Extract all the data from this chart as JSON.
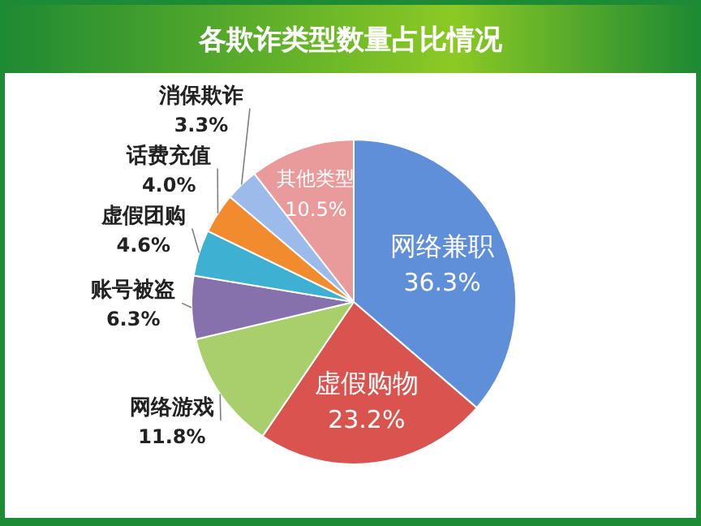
{
  "chart_data": {
    "type": "pie",
    "title": "各欺诈类型数量占比情况",
    "categories": [
      "网络兼职",
      "虚假购物",
      "网络游戏",
      "账号被盗",
      "虚假团购",
      "话费充值",
      "消保欺诈",
      "其他类型"
    ],
    "values": [
      36.3,
      23.2,
      11.8,
      6.3,
      4.6,
      4.0,
      3.3,
      10.5
    ],
    "value_labels": [
      "36.3%",
      "23.2%",
      "11.8%",
      "6.3%",
      "4.6%",
      "4.0%",
      "3.3%",
      "10.5%"
    ],
    "colors": [
      "#5f8fd8",
      "#d9534f",
      "#a9cf6c",
      "#8671ad",
      "#3eb1d2",
      "#f28a2e",
      "#9dbbea",
      "#e99b9b"
    ]
  }
}
